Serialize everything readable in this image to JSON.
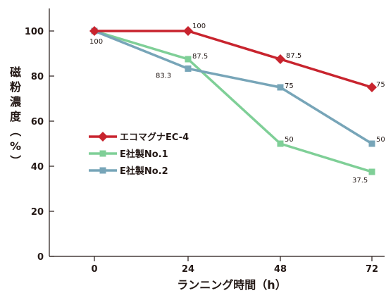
{
  "chart_data": {
    "type": "line",
    "x": [
      0,
      24,
      48,
      72
    ],
    "xlabel": "ランニング時間（h）",
    "ylabel": "磁粉濃度（%）",
    "ylim": [
      0,
      110
    ],
    "yticks": [
      0,
      20,
      40,
      60,
      80,
      100
    ],
    "xticks": [
      0,
      24,
      48,
      72
    ],
    "grid": false,
    "legend_position": "center-left",
    "series": [
      {
        "name": "エコマグナEC-4",
        "values": [
          100,
          100,
          87.5,
          75
        ],
        "data_labels": [
          "",
          "100",
          "87.5",
          "75"
        ],
        "color": "#c8242e",
        "marker": "diamond"
      },
      {
        "name": "E社製No.1",
        "values": [
          100,
          87.5,
          50,
          37.5
        ],
        "data_labels": [
          "",
          "87.5",
          "50",
          "37.5"
        ],
        "color": "#7fcf97",
        "marker": "square"
      },
      {
        "name": "E社製No.2",
        "values": [
          100,
          83.3,
          75,
          50
        ],
        "data_labels": [
          "100",
          "83.3",
          "75",
          "50"
        ],
        "color": "#77a5b8",
        "marker": "square"
      }
    ]
  }
}
